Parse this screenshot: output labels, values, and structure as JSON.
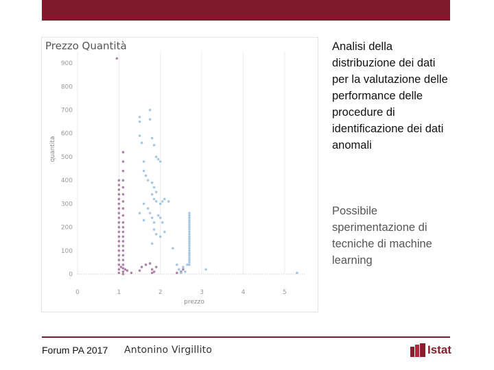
{
  "header": {
    "color": "#7e1a2c"
  },
  "chart_data": {
    "type": "scatter",
    "title": "Prezzo Quantità",
    "xlabel": "prezzo",
    "ylabel": "quantita",
    "xlim": [
      0,
      5.5
    ],
    "ylim": [
      0,
      950
    ],
    "x_ticks": [
      "0",
      "1",
      "2",
      "3",
      "4",
      "5"
    ],
    "y_ticks": [
      "0",
      "100",
      "200",
      "300",
      "400",
      "500",
      "600",
      "700",
      "800",
      "900"
    ],
    "grid": true,
    "legend": "none",
    "series": [
      {
        "color": "#a3779f",
        "points": [
          [
            0.95,
            920
          ],
          [
            1.1,
            520
          ],
          [
            1.1,
            480
          ],
          [
            1.1,
            440
          ],
          [
            1.1,
            400
          ],
          [
            1.1,
            370
          ],
          [
            1.1,
            340
          ],
          [
            1.1,
            310
          ],
          [
            1.1,
            280
          ],
          [
            1.1,
            250
          ],
          [
            1.1,
            220
          ],
          [
            1.1,
            200
          ],
          [
            1.1,
            180
          ],
          [
            1.1,
            160
          ],
          [
            1.1,
            140
          ],
          [
            1.1,
            120
          ],
          [
            1.1,
            100
          ],
          [
            1.1,
            80
          ],
          [
            1.1,
            60
          ],
          [
            1.1,
            40
          ],
          [
            1.1,
            25
          ],
          [
            1.1,
            10
          ],
          [
            1.1,
            0
          ],
          [
            1.0,
            400
          ],
          [
            1.0,
            380
          ],
          [
            1.0,
            360
          ],
          [
            1.0,
            340
          ],
          [
            1.0,
            320
          ],
          [
            1.0,
            300
          ],
          [
            1.0,
            280
          ],
          [
            1.0,
            260
          ],
          [
            1.0,
            240
          ],
          [
            1.0,
            220
          ],
          [
            1.0,
            200
          ],
          [
            1.0,
            180
          ],
          [
            1.0,
            160
          ],
          [
            1.0,
            140
          ],
          [
            1.0,
            120
          ],
          [
            1.0,
            100
          ],
          [
            1.0,
            80
          ],
          [
            1.0,
            60
          ],
          [
            1.0,
            40
          ],
          [
            1.0,
            20
          ],
          [
            1.0,
            5
          ],
          [
            1.05,
            30
          ],
          [
            1.15,
            20
          ],
          [
            1.2,
            15
          ],
          [
            1.3,
            5
          ],
          [
            1.5,
            15
          ],
          [
            1.55,
            30
          ],
          [
            1.65,
            40
          ],
          [
            1.75,
            45
          ],
          [
            1.8,
            20
          ],
          [
            1.8,
            5
          ],
          [
            1.85,
            10
          ],
          [
            1.9,
            30
          ],
          [
            2.4,
            5
          ],
          [
            2.5,
            10
          ],
          [
            2.55,
            20
          ]
        ]
      },
      {
        "color": "#9fc1de",
        "points": [
          [
            1.5,
            670
          ],
          [
            1.5,
            650
          ],
          [
            1.5,
            590
          ],
          [
            1.55,
            560
          ],
          [
            1.6,
            480
          ],
          [
            1.75,
            700
          ],
          [
            1.75,
            660
          ],
          [
            1.8,
            580
          ],
          [
            1.85,
            550
          ],
          [
            1.9,
            500
          ],
          [
            1.95,
            490
          ],
          [
            2.0,
            480
          ],
          [
            1.6,
            440
          ],
          [
            1.65,
            420
          ],
          [
            1.7,
            400
          ],
          [
            1.8,
            390
          ],
          [
            1.85,
            370
          ],
          [
            1.9,
            350
          ],
          [
            1.8,
            340
          ],
          [
            1.85,
            320
          ],
          [
            1.9,
            310
          ],
          [
            2.0,
            300
          ],
          [
            2.05,
            310
          ],
          [
            2.1,
            320
          ],
          [
            2.2,
            310
          ],
          [
            1.6,
            300
          ],
          [
            1.7,
            280
          ],
          [
            1.75,
            260
          ],
          [
            1.8,
            240
          ],
          [
            1.85,
            220
          ],
          [
            1.95,
            250
          ],
          [
            2.0,
            240
          ],
          [
            2.05,
            220
          ],
          [
            1.85,
            190
          ],
          [
            1.9,
            170
          ],
          [
            2.0,
            160
          ],
          [
            2.1,
            180
          ],
          [
            2.3,
            110
          ],
          [
            1.8,
            130
          ],
          [
            1.6,
            230
          ],
          [
            1.5,
            260
          ],
          [
            2.4,
            40
          ],
          [
            2.45,
            20
          ],
          [
            2.55,
            30
          ],
          [
            2.6,
            10
          ],
          [
            2.65,
            40
          ],
          [
            2.5,
            5
          ],
          [
            3.1,
            20
          ],
          [
            5.3,
            5
          ],
          [
            2.7,
            260
          ],
          [
            2.7,
            250
          ],
          [
            2.7,
            240
          ],
          [
            2.7,
            230
          ],
          [
            2.7,
            220
          ],
          [
            2.7,
            210
          ],
          [
            2.7,
            200
          ],
          [
            2.7,
            190
          ],
          [
            2.7,
            180
          ],
          [
            2.7,
            170
          ],
          [
            2.7,
            160
          ],
          [
            2.7,
            150
          ],
          [
            2.7,
            140
          ],
          [
            2.7,
            130
          ],
          [
            2.7,
            120
          ],
          [
            2.7,
            110
          ],
          [
            2.7,
            100
          ],
          [
            2.7,
            90
          ],
          [
            2.7,
            80
          ],
          [
            2.7,
            70
          ],
          [
            2.7,
            60
          ],
          [
            2.7,
            50
          ],
          [
            2.7,
            40
          ]
        ]
      }
    ]
  },
  "side_text": {
    "main": "Analisi della distribuzione dei dati per la valutazione delle performance delle procedure di identificazione dei dati anomali",
    "sub": "Possibile sperimentazione di tecniche di machine learning"
  },
  "footer": {
    "event": "Forum PA 2017",
    "author": "Antonino Virgillito",
    "logo_text": "Istat"
  }
}
